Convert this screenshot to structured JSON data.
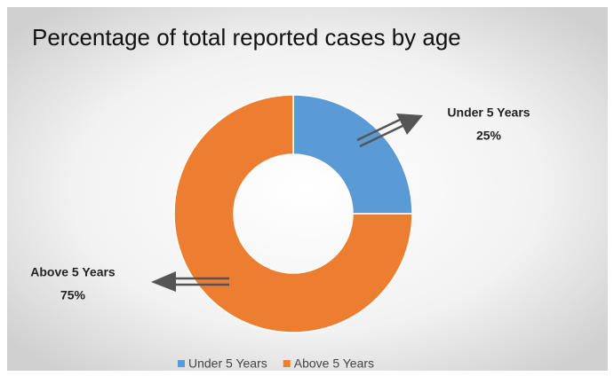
{
  "chart_data": {
    "type": "donut",
    "title": "Percentage of total reported cases by age",
    "categories": [
      "Under 5 Years",
      "Above 5 Years"
    ],
    "values": [
      25,
      75
    ],
    "value_labels": [
      "25%",
      "75%"
    ],
    "colors": [
      "#5b9bd5",
      "#ed7d31"
    ],
    "legend": "bottom"
  }
}
